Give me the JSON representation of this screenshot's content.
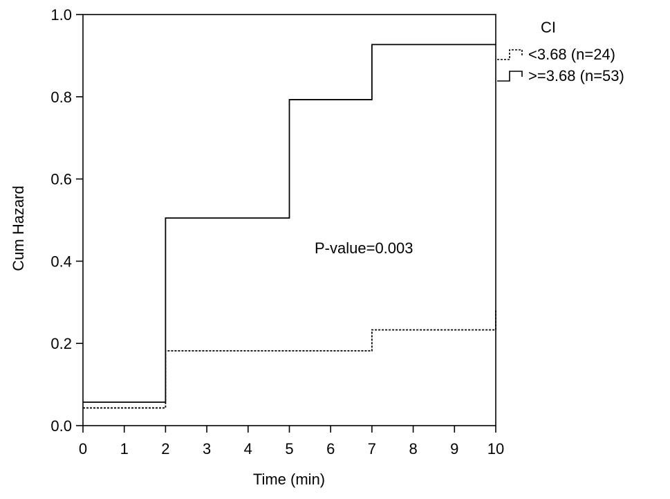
{
  "chart_data": {
    "type": "line",
    "xlabel": "Time (min)",
    "ylabel": "Cum Hazard",
    "xlim": [
      0,
      10
    ],
    "ylim": [
      0.0,
      1.0
    ],
    "xticks": [
      0,
      1,
      2,
      3,
      4,
      5,
      6,
      7,
      8,
      9,
      10
    ],
    "xtick_labels": [
      "0",
      "1",
      "2",
      "3",
      "4",
      "5",
      "6",
      "7",
      "8",
      "9",
      "10"
    ],
    "yticks": [
      0.0,
      0.2,
      0.4,
      0.6,
      0.8,
      1.0
    ],
    "ytick_labels": [
      "0.0",
      "0.2",
      "0.4",
      "0.6",
      "0.8",
      "1.0"
    ],
    "grid": false,
    "legend": {
      "title": "CI",
      "placement": "top-right, outside plot"
    },
    "annotation": "P-value=0.003",
    "series": [
      {
        "name": "<3.68 (n=24)",
        "style": "dotted",
        "step": true,
        "x": [
          0,
          2,
          7,
          10
        ],
        "y": [
          0.043,
          0.182,
          0.233,
          0.28
        ]
      },
      {
        "name": ">=3.68 (n=53)",
        "style": "solid",
        "step": true,
        "x": [
          0,
          2,
          5,
          7,
          10
        ],
        "y": [
          0.057,
          0.505,
          0.793,
          0.927,
          0.927
        ]
      }
    ]
  }
}
